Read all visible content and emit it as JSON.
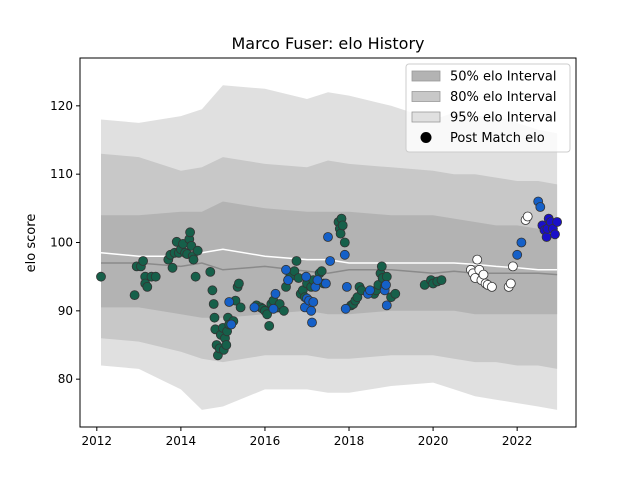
{
  "chart_data": {
    "type": "scatter",
    "title": "Marco Fuser: elo History",
    "xlabel": "",
    "ylabel": "elo score",
    "xlim": [
      2011.6,
      2023.4
    ],
    "ylim": [
      73,
      127
    ],
    "x_ticks": [
      2012,
      2014,
      2016,
      2018,
      2020,
      2022
    ],
    "y_ticks": [
      80,
      90,
      100,
      110,
      120
    ],
    "grid": false,
    "legend_position": "top-right",
    "legend": [
      {
        "label": "50% elo Interval",
        "kind": "band",
        "color": "#b3b3b3"
      },
      {
        "label": "80% elo Interval",
        "kind": "band",
        "color": "#c8c8c8"
      },
      {
        "label": "95% elo Interval",
        "kind": "band",
        "color": "#e0e0e0"
      },
      {
        "label": "Post Match elo",
        "kind": "marker",
        "color": "#000000"
      }
    ],
    "colors": {
      "band_95": "#e0e0e0",
      "band_80": "#c8c8c8",
      "band_50": "#b3b3b3",
      "median_line": "#8a8a8a",
      "mean_line": "#ffffff",
      "marker_edge": "#333333"
    },
    "series": [
      {
        "color": "#16604a",
        "points": [
          [
            2012.1,
            95.0
          ],
          [
            2012.9,
            92.3
          ],
          [
            2012.95,
            96.5
          ],
          [
            2013.05,
            96.5
          ],
          [
            2013.1,
            97.3
          ],
          [
            2013.15,
            95.0
          ],
          [
            2013.15,
            94.0
          ],
          [
            2013.2,
            93.5
          ],
          [
            2013.3,
            95.0
          ],
          [
            2013.4,
            95.0
          ],
          [
            2013.7,
            97.5
          ],
          [
            2013.75,
            98.2
          ],
          [
            2013.8,
            96.3
          ],
          [
            2013.85,
            98.5
          ],
          [
            2013.9,
            100.1
          ],
          [
            2013.95,
            98.5
          ],
          [
            2014.0,
            99.0
          ],
          [
            2014.05,
            99.8
          ],
          [
            2014.1,
            98.5
          ],
          [
            2014.15,
            98.3
          ],
          [
            2014.2,
            100.5
          ],
          [
            2014.22,
            101.5
          ],
          [
            2014.25,
            99.5
          ],
          [
            2014.28,
            98.0
          ],
          [
            2014.3,
            97.5
          ],
          [
            2014.35,
            95.0
          ],
          [
            2014.4,
            98.8
          ],
          [
            2014.7,
            95.7
          ],
          [
            2014.75,
            93.0
          ],
          [
            2014.78,
            91.0
          ],
          [
            2014.8,
            89.0
          ],
          [
            2014.82,
            87.3
          ],
          [
            2014.85,
            85.0
          ],
          [
            2014.88,
            83.5
          ],
          [
            2014.92,
            84.5
          ],
          [
            2014.95,
            86.5
          ],
          [
            2015.0,
            87.5
          ],
          [
            2015.02,
            84.3
          ],
          [
            2015.05,
            86.0
          ],
          [
            2015.08,
            85.0
          ],
          [
            2015.1,
            87.0
          ],
          [
            2015.12,
            89.0
          ],
          [
            2015.15,
            88.0
          ],
          [
            2015.25,
            88.5
          ],
          [
            2015.3,
            91.5
          ],
          [
            2015.35,
            93.5
          ],
          [
            2015.38,
            94.0
          ],
          [
            2015.42,
            90.5
          ],
          [
            2015.8,
            90.8
          ],
          [
            2015.9,
            90.5
          ],
          [
            2015.95,
            90.3
          ],
          [
            2016.0,
            90.0
          ],
          [
            2016.05,
            89.5
          ],
          [
            2016.1,
            87.8
          ],
          [
            2016.15,
            91.0
          ],
          [
            2016.2,
            91.5
          ],
          [
            2016.3,
            90.5
          ],
          [
            2016.35,
            91.0
          ],
          [
            2016.45,
            90.0
          ],
          [
            2016.5,
            93.5
          ],
          [
            2016.55,
            94.5
          ],
          [
            2016.6,
            95.0
          ],
          [
            2016.7,
            95.8
          ],
          [
            2016.75,
            97.3
          ],
          [
            2016.8,
            94.8
          ],
          [
            2016.85,
            92.5
          ],
          [
            2016.9,
            93.0
          ],
          [
            2016.95,
            92.0
          ],
          [
            2017.0,
            94.0
          ],
          [
            2017.05,
            91.5
          ],
          [
            2017.1,
            93.5
          ],
          [
            2017.15,
            94.5
          ],
          [
            2017.3,
            95.5
          ],
          [
            2017.35,
            95.8
          ],
          [
            2017.4,
            94.0
          ],
          [
            2017.75,
            103.0
          ],
          [
            2017.78,
            102.0
          ],
          [
            2017.8,
            101.3
          ],
          [
            2017.82,
            103.5
          ],
          [
            2017.85,
            102.5
          ],
          [
            2017.9,
            100.0
          ],
          [
            2018.05,
            90.8
          ],
          [
            2018.1,
            91.0
          ],
          [
            2018.15,
            91.5
          ],
          [
            2018.2,
            92.0
          ],
          [
            2018.25,
            93.5
          ],
          [
            2018.3,
            93.0
          ],
          [
            2018.6,
            92.5
          ],
          [
            2018.65,
            93.0
          ],
          [
            2018.7,
            93.8
          ],
          [
            2018.75,
            95.5
          ],
          [
            2018.78,
            96.5
          ],
          [
            2018.8,
            94.8
          ],
          [
            2018.85,
            93.5
          ],
          [
            2018.9,
            95.0
          ],
          [
            2019.0,
            92.0
          ],
          [
            2019.1,
            92.5
          ],
          [
            2019.8,
            93.8
          ],
          [
            2019.95,
            94.5
          ],
          [
            2020.0,
            94.0
          ],
          [
            2020.1,
            94.3
          ],
          [
            2020.2,
            94.5
          ]
        ]
      },
      {
        "color": "#1560c8",
        "points": [
          [
            2015.15,
            91.3
          ],
          [
            2015.2,
            88.0
          ],
          [
            2015.75,
            90.5
          ],
          [
            2016.2,
            90.3
          ],
          [
            2016.25,
            92.5
          ],
          [
            2016.5,
            96.0
          ],
          [
            2016.55,
            94.5
          ],
          [
            2016.95,
            90.5
          ],
          [
            2016.98,
            95.0
          ],
          [
            2017.0,
            91.8
          ],
          [
            2017.05,
            91.5
          ],
          [
            2017.1,
            90.0
          ],
          [
            2017.12,
            88.3
          ],
          [
            2017.15,
            91.3
          ],
          [
            2017.2,
            93.5
          ],
          [
            2017.25,
            94.5
          ],
          [
            2017.45,
            94.0
          ],
          [
            2017.5,
            100.8
          ],
          [
            2017.55,
            97.3
          ],
          [
            2017.9,
            98.2
          ],
          [
            2017.92,
            90.3
          ],
          [
            2017.95,
            93.5
          ],
          [
            2018.45,
            92.5
          ],
          [
            2018.5,
            93.0
          ],
          [
            2018.85,
            93.0
          ],
          [
            2018.88,
            93.8
          ],
          [
            2018.9,
            90.8
          ],
          [
            2022.0,
            98.2
          ],
          [
            2022.1,
            100.0
          ],
          [
            2022.5,
            106.0
          ],
          [
            2022.55,
            105.2
          ]
        ]
      },
      {
        "color": "#ffffff",
        "points": [
          [
            2020.9,
            96.0
          ],
          [
            2020.95,
            95.5
          ],
          [
            2021.0,
            94.8
          ],
          [
            2021.05,
            97.5
          ],
          [
            2021.1,
            96.0
          ],
          [
            2021.15,
            94.5
          ],
          [
            2021.2,
            95.3
          ],
          [
            2021.25,
            94.0
          ],
          [
            2021.3,
            93.8
          ],
          [
            2021.4,
            93.5
          ],
          [
            2021.8,
            93.5
          ],
          [
            2021.85,
            94.0
          ],
          [
            2021.9,
            96.5
          ],
          [
            2022.2,
            103.3
          ],
          [
            2022.25,
            103.8
          ]
        ]
      },
      {
        "color": "#1a10c8",
        "points": [
          [
            2022.6,
            102.5
          ],
          [
            2022.65,
            101.8
          ],
          [
            2022.7,
            100.8
          ],
          [
            2022.72,
            102.0
          ],
          [
            2022.75,
            103.5
          ],
          [
            2022.8,
            103.0
          ],
          [
            2022.85,
            102.0
          ],
          [
            2022.9,
            101.2
          ],
          [
            2022.95,
            103.0
          ]
        ]
      }
    ],
    "bands": {
      "x": [
        2012.1,
        2013.0,
        2014.0,
        2014.5,
        2015.0,
        2016.0,
        2017.0,
        2017.5,
        2018.0,
        2019.0,
        2020.0,
        2020.5,
        2021.0,
        2021.5,
        2022.0,
        2022.5,
        2022.95
      ],
      "band95_upper": [
        118.0,
        117.5,
        118.5,
        119.5,
        123.0,
        122.5,
        121.0,
        122.0,
        121.5,
        120.0,
        118.0,
        119.0,
        118.5,
        118.5,
        117.5,
        116.5,
        116.0
      ],
      "band95_lower": [
        82.0,
        81.5,
        78.5,
        75.5,
        76.0,
        78.5,
        78.5,
        78.0,
        78.0,
        79.0,
        79.5,
        78.5,
        77.5,
        77.0,
        76.5,
        76.0,
        75.5
      ],
      "band80_upper": [
        113.0,
        112.5,
        110.5,
        111.0,
        112.5,
        111.5,
        111.0,
        112.0,
        111.5,
        111.0,
        110.5,
        110.0,
        110.0,
        109.5,
        109.0,
        109.0,
        108.5
      ],
      "band80_lower": [
        86.0,
        85.5,
        84.0,
        83.0,
        82.5,
        83.5,
        83.5,
        83.0,
        83.0,
        83.5,
        83.5,
        83.0,
        82.5,
        82.5,
        82.0,
        82.0,
        81.5
      ],
      "band50_upper": [
        104.0,
        104.0,
        104.5,
        104.5,
        106.0,
        105.0,
        104.5,
        104.5,
        104.5,
        104.0,
        104.0,
        103.5,
        103.0,
        102.5,
        102.5,
        102.0,
        102.0
      ],
      "band50_lower": [
        90.5,
        90.5,
        89.5,
        89.0,
        89.0,
        89.5,
        90.0,
        89.5,
        89.5,
        90.0,
        90.0,
        90.0,
        89.5,
        89.5,
        89.5,
        89.5,
        89.5
      ],
      "median": [
        97.0,
        97.0,
        96.5,
        97.0,
        96.0,
        96.5,
        95.8,
        95.5,
        96.0,
        96.0,
        95.5,
        95.8,
        95.5,
        95.5,
        95.5,
        95.5,
        95.3
      ],
      "mean": [
        98.5,
        98.0,
        98.0,
        98.5,
        99.0,
        98.0,
        97.5,
        97.5,
        97.0,
        97.0,
        97.0,
        97.0,
        96.8,
        96.5,
        96.3,
        96.0,
        96.0
      ]
    }
  }
}
